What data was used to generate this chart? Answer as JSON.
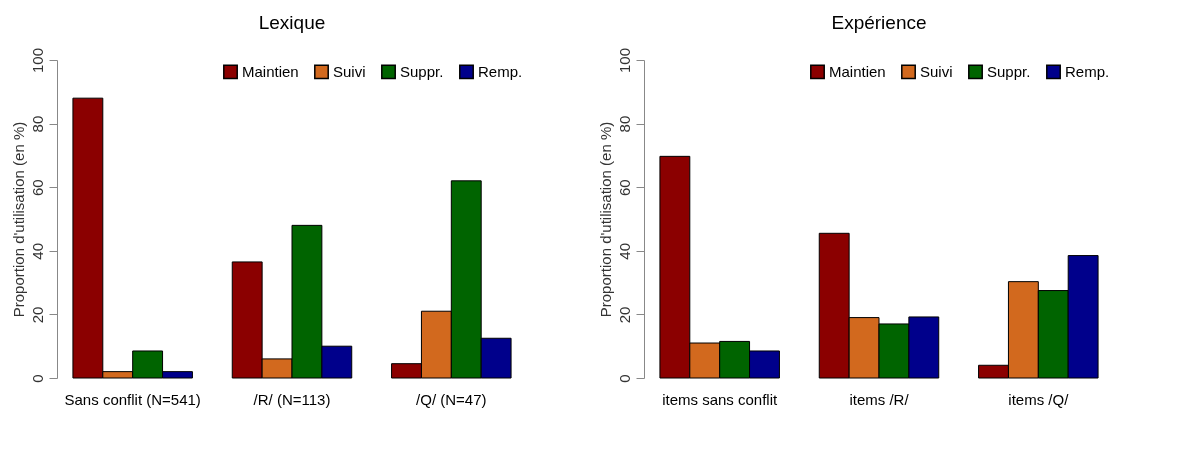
{
  "chart_data": [
    {
      "type": "bar",
      "title": "Lexique",
      "ylabel": "Proportion d'utilisation (en %)",
      "categories": [
        "Sans conflit (N=541)",
        "/R/ (N=113)",
        "/Q/ (N=47)"
      ],
      "series": [
        {
          "name": "Maintien",
          "color": "#8b0000",
          "values": [
            88,
            36.5,
            4.5
          ]
        },
        {
          "name": "Suivi",
          "color": "#d2691e",
          "values": [
            2,
            6,
            21
          ]
        },
        {
          "name": "Suppr.",
          "color": "#006400",
          "values": [
            8.5,
            48,
            62
          ]
        },
        {
          "name": "Remp.",
          "color": "#00008b",
          "values": [
            2,
            10,
            12.5
          ]
        }
      ],
      "ylim": [
        0,
        100
      ],
      "yticks": [
        0,
        20,
        40,
        60,
        80,
        100
      ],
      "grid": false,
      "legend": "top right"
    },
    {
      "type": "bar",
      "title": "Expérience",
      "ylabel": "Proportion d'utilisation (en %)",
      "categories": [
        "items sans conflit",
        "items /R/",
        "items /Q/"
      ],
      "series": [
        {
          "name": "Maintien",
          "color": "#8b0000",
          "values": [
            69.7,
            45.5,
            4
          ]
        },
        {
          "name": "Suivi",
          "color": "#d2691e",
          "values": [
            11,
            19,
            30.3
          ]
        },
        {
          "name": "Suppr.",
          "color": "#006400",
          "values": [
            11.5,
            17,
            27.5
          ]
        },
        {
          "name": "Remp.",
          "color": "#00008b",
          "values": [
            8.5,
            19.2,
            38.5
          ]
        }
      ],
      "ylim": [
        0,
        100
      ],
      "yticks": [
        0,
        20,
        40,
        60,
        80,
        100
      ],
      "grid": false,
      "legend": "top right"
    }
  ]
}
